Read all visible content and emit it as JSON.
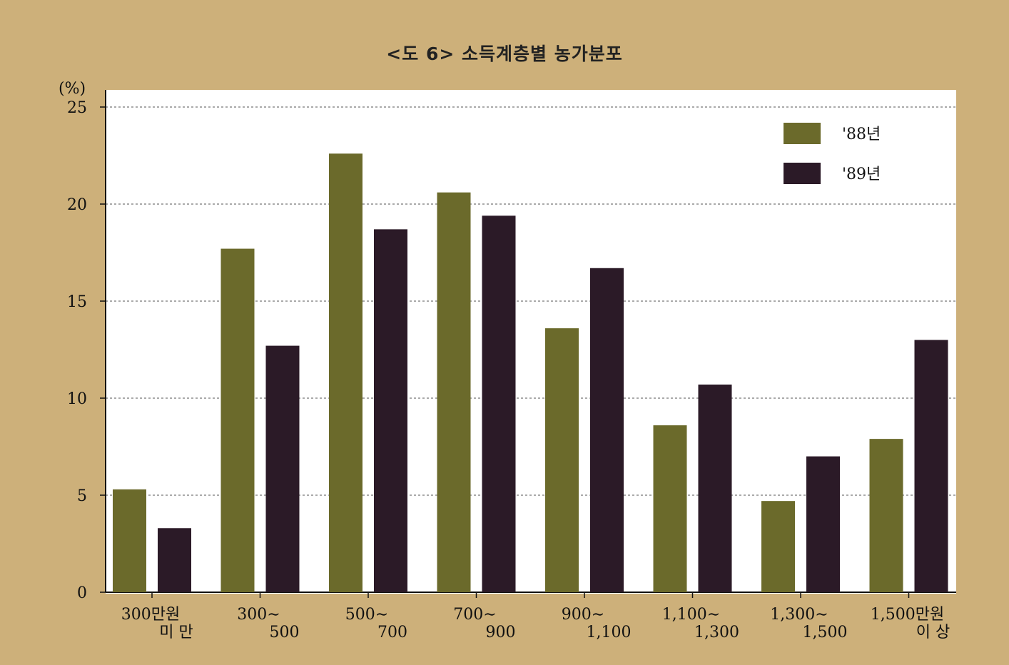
{
  "chart_data": {
    "type": "bar",
    "title": "<도 6>  소득계층별 농가분포",
    "ylabel": "(%)",
    "xlabel": "",
    "ylim": [
      0,
      25
    ],
    "yticks": [
      0,
      5,
      10,
      15,
      20,
      25
    ],
    "grid": true,
    "legend_position": "top-right",
    "categories": [
      [
        "300만원",
        "미  만"
      ],
      [
        "300∼",
        "500"
      ],
      [
        "500∼",
        "700"
      ],
      [
        "700∼",
        "900"
      ],
      [
        "900∼",
        "1,100"
      ],
      [
        "1,100∼",
        "1,300"
      ],
      [
        "1,300∼",
        "1,500"
      ],
      [
        "1,500만원",
        "이  상"
      ]
    ],
    "series": [
      {
        "name": "'88년",
        "color": "#6b6a2b",
        "values": [
          5.3,
          17.7,
          22.6,
          20.6,
          13.6,
          8.6,
          4.7,
          7.9
        ]
      },
      {
        "name": "'89년",
        "color": "#2b1a27",
        "values": [
          3.3,
          12.7,
          18.7,
          19.4,
          16.7,
          10.7,
          7.0,
          13.0
        ]
      }
    ]
  },
  "colors": {
    "frame": "#cdb07a",
    "plot_background": "#ffffff",
    "grid": "#555555"
  }
}
